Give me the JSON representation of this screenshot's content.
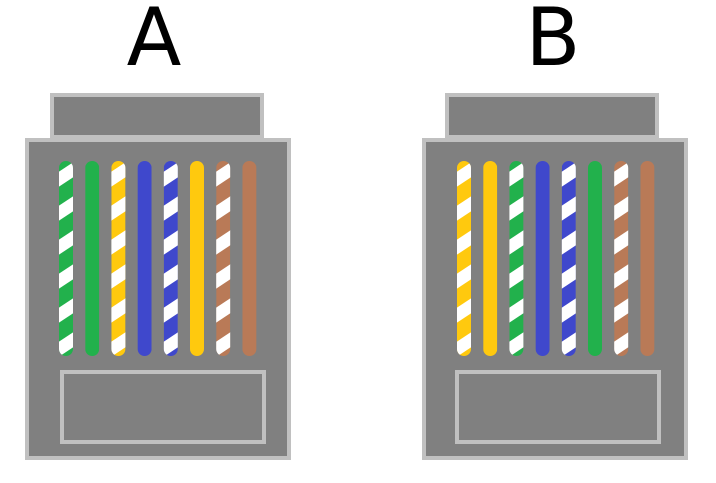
{
  "labels": {
    "a": "A",
    "b": "B"
  },
  "colors": {
    "connector_body": "#808080",
    "connector_outline": "#c0c0c0",
    "white": "#ffffff",
    "green": "#22b14c",
    "orange": "#ffc90e",
    "blue": "#3f48cc",
    "brown": "#b97a57"
  },
  "connectors": [
    {
      "label_key": "a",
      "wires": [
        {
          "color": "green",
          "striped": true
        },
        {
          "color": "green",
          "striped": false
        },
        {
          "color": "orange",
          "striped": true
        },
        {
          "color": "blue",
          "striped": false
        },
        {
          "color": "blue",
          "striped": true
        },
        {
          "color": "orange",
          "striped": false
        },
        {
          "color": "brown",
          "striped": true
        },
        {
          "color": "brown",
          "striped": false
        }
      ]
    },
    {
      "label_key": "b",
      "wires": [
        {
          "color": "orange",
          "striped": true
        },
        {
          "color": "orange",
          "striped": false
        },
        {
          "color": "green",
          "striped": true
        },
        {
          "color": "blue",
          "striped": false
        },
        {
          "color": "blue",
          "striped": true
        },
        {
          "color": "green",
          "striped": false
        },
        {
          "color": "brown",
          "striped": true
        },
        {
          "color": "brown",
          "striped": false
        }
      ]
    }
  ]
}
